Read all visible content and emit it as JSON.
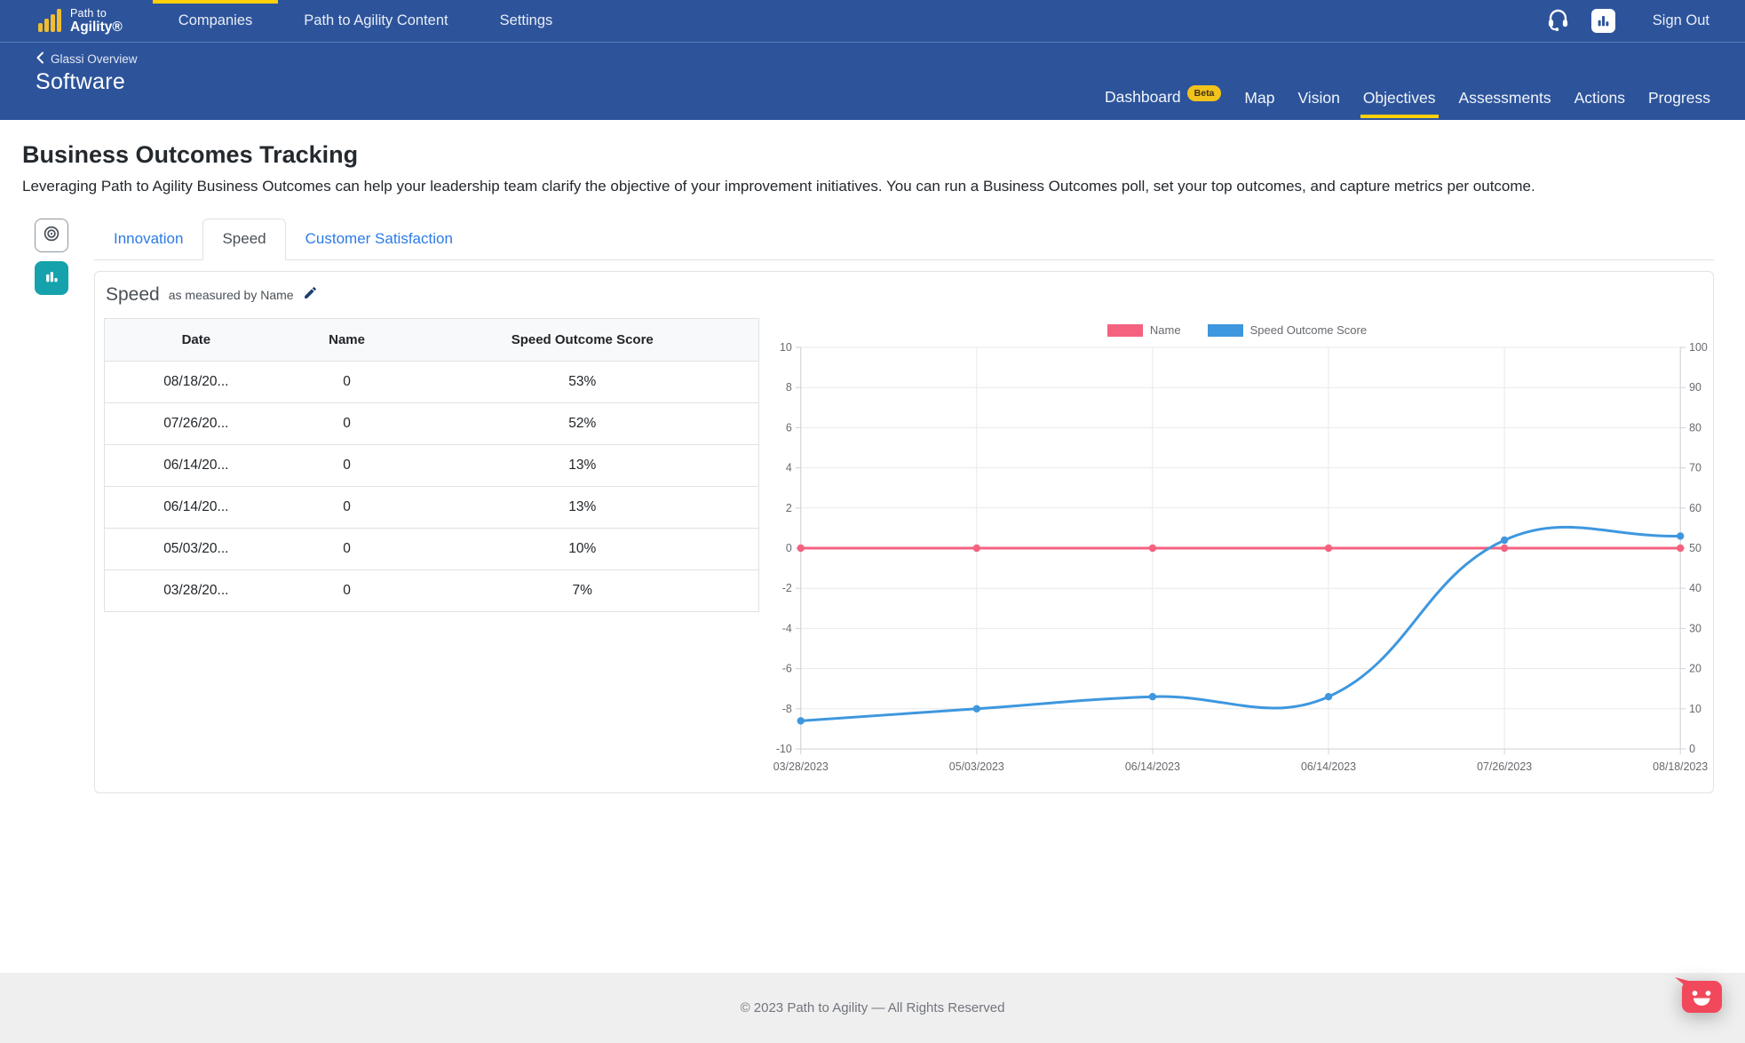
{
  "topnav": {
    "logo": {
      "line1": "Path to",
      "line2": "Agility®"
    },
    "items": [
      {
        "label": "Companies"
      },
      {
        "label": "Path to Agility Content"
      },
      {
        "label": "Settings"
      }
    ],
    "sign_out": "Sign Out"
  },
  "subnav": {
    "back_label": "Glassi Overview",
    "title": "Software",
    "items": [
      {
        "label": "Dashboard",
        "badge": "Beta"
      },
      {
        "label": "Map"
      },
      {
        "label": "Vision"
      },
      {
        "label": "Objectives"
      },
      {
        "label": "Assessments"
      },
      {
        "label": "Actions"
      },
      {
        "label": "Progress"
      }
    ]
  },
  "page": {
    "title": "Business Outcomes Tracking",
    "description": "Leveraging Path to Agility Business Outcomes can help your leadership team clarify the objective of your improvement initiatives. You can run a Business Outcomes poll, set your top outcomes, and capture metrics per outcome."
  },
  "tabs": [
    {
      "label": "Innovation"
    },
    {
      "label": "Speed"
    },
    {
      "label": "Customer Satisfaction"
    }
  ],
  "card": {
    "title": "Speed",
    "subtitle": "as measured by Name",
    "table": {
      "columns": [
        "Date",
        "Name",
        "Speed Outcome Score"
      ],
      "rows": [
        [
          "08/18/20...",
          "0",
          "53%"
        ],
        [
          "07/26/20...",
          "0",
          "52%"
        ],
        [
          "06/14/20...",
          "0",
          "13%"
        ],
        [
          "06/14/20...",
          "0",
          "13%"
        ],
        [
          "05/03/20...",
          "0",
          "10%"
        ],
        [
          "03/28/20...",
          "0",
          "7%"
        ]
      ]
    }
  },
  "chart_data": {
    "type": "line",
    "x": [
      "03/28/2023",
      "05/03/2023",
      "06/14/2023",
      "06/14/2023",
      "07/26/2023",
      "08/18/2023"
    ],
    "series": [
      {
        "name": "Name",
        "axis": "left",
        "color": "#F4627F",
        "values": [
          0,
          0,
          0,
          0,
          0,
          0
        ]
      },
      {
        "name": "Speed Outcome Score",
        "axis": "right",
        "color": "#3E97DE",
        "values": [
          7,
          10,
          13,
          13,
          52,
          53
        ]
      }
    ],
    "left_axis": {
      "min": -10,
      "max": 10,
      "tick_step": 2
    },
    "right_axis": {
      "min": 0,
      "max": 100,
      "tick_step": 10
    },
    "legend_position": "top",
    "grid": true,
    "curve": "spline"
  },
  "footer": {
    "copyright": "© 2023 Path to Agility — All Rights Reserved"
  },
  "colors": {
    "nav_blue": "#2D549B",
    "accent_yellow": "#FFD008",
    "link_blue": "#2D7BE5",
    "teal": "#15A2AC",
    "chat_red": "#F2485B",
    "series_pink": "#F4627F",
    "series_blue": "#3E97DE"
  }
}
